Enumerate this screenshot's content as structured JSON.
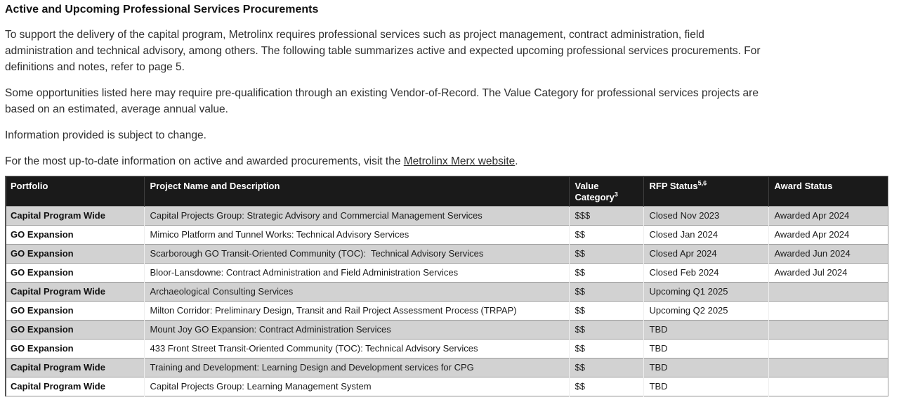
{
  "page": {
    "title": "Active and Upcoming Professional Services Procurements",
    "paragraphs": {
      "p1": "To support the delivery of the capital program, Metrolinx requires professional services such as project management, contract administration, field\nadministration and technical advisory, among others. The following table summarizes active and expected upcoming professional services procurements. For\ndefinitions and notes, refer to page 5.",
      "p2": "Some opportunities listed here may require pre-qualification through an existing Vendor-of-Record. The Value Category for professional services projects are\nbased on an estimated, average annual value.",
      "p3": "Information provided is subject to change.",
      "p4_prefix": "For the most up-to-date information on active and awarded procurements, visit the ",
      "p4_link": "Metrolinx Merx website",
      "p4_suffix": "."
    }
  },
  "table": {
    "columns": [
      {
        "label": "Portfolio",
        "sup": ""
      },
      {
        "label": "Project Name and Description",
        "sup": ""
      },
      {
        "label": "Value Category",
        "sup": "3"
      },
      {
        "label": "RFP Status",
        "sup": "5,6"
      },
      {
        "label": "Award Status",
        "sup": ""
      }
    ],
    "rows": [
      {
        "portfolio": "Capital Program Wide",
        "project": "Capital Projects Group: Strategic Advisory and Commercial Management Services",
        "value": "$$$",
        "rfp": "Closed Nov 2023",
        "award": "Awarded Apr 2024"
      },
      {
        "portfolio": "GO Expansion",
        "project": "Mimico Platform and Tunnel Works: Technical Advisory Services",
        "value": "$$",
        "rfp": "Closed Jan 2024",
        "award": "Awarded Apr 2024"
      },
      {
        "portfolio": "GO Expansion",
        "project": "Scarborough GO Transit-Oriented Community (TOC):  Technical Advisory Services",
        "value": "$$",
        "rfp": "Closed Apr 2024",
        "award": "Awarded Jun 2024"
      },
      {
        "portfolio": "GO Expansion",
        "project": "Bloor-Lansdowne: Contract Administration and Field Administration Services",
        "value": "$$",
        "rfp": "Closed Feb 2024",
        "award": "Awarded Jul 2024"
      },
      {
        "portfolio": "Capital Program Wide",
        "project": "Archaeological Consulting Services",
        "value": "$$",
        "rfp": "Upcoming Q1 2025",
        "award": ""
      },
      {
        "portfolio": "GO Expansion",
        "project": "Milton Corridor: Preliminary Design, Transit and Rail Project Assessment Process (TRPAP)",
        "value": "$$",
        "rfp": "Upcoming Q2 2025",
        "award": ""
      },
      {
        "portfolio": "GO Expansion",
        "project": "Mount Joy GO Expansion: Contract Administration Services",
        "value": "$$",
        "rfp": "TBD",
        "award": ""
      },
      {
        "portfolio": "GO Expansion",
        "project": "433 Front Street Transit-Oriented Community (TOC): Technical Advisory Services",
        "value": "$$",
        "rfp": "TBD",
        "award": ""
      },
      {
        "portfolio": "Capital Program Wide",
        "project": "Training and Development: Learning Design and Development services for CPG",
        "value": "$$",
        "rfp": "TBD",
        "award": ""
      },
      {
        "portfolio": "Capital Program Wide",
        "project": "Capital Projects Group: Learning Management System",
        "value": "$$",
        "rfp": "TBD",
        "award": ""
      }
    ]
  },
  "colors": {
    "header_bg": "#1a1a1a",
    "header_text": "#ffffff",
    "stripe_row": "#d2d2d2",
    "row_border": "#9c9c9c",
    "body_text": "#1c1c1c"
  }
}
